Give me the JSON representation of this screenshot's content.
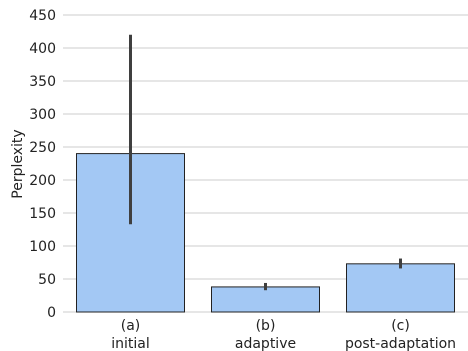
{
  "chart_data": {
    "type": "bar",
    "categories": [
      [
        "(a)",
        "initial"
      ],
      [
        "(b)",
        "adaptive"
      ],
      [
        "(c)",
        "post-adaptation"
      ]
    ],
    "values": [
      240,
      38,
      73
    ],
    "error_bars": [
      {
        "low": 133,
        "high": 420
      },
      {
        "low": 33,
        "high": 44
      },
      {
        "low": 66,
        "high": 81
      }
    ],
    "xlabel": "",
    "ylabel": "Perplexity",
    "ylim": [
      0,
      450
    ],
    "yticks": [
      0,
      50,
      100,
      150,
      200,
      250,
      300,
      350,
      400,
      450
    ],
    "grid": "horizontal",
    "colors": {
      "bar_fill": "#a3c8f4",
      "bar_edge": "#222222",
      "error_bar": "#3f3f3f",
      "grid": "#cccccc"
    }
  }
}
